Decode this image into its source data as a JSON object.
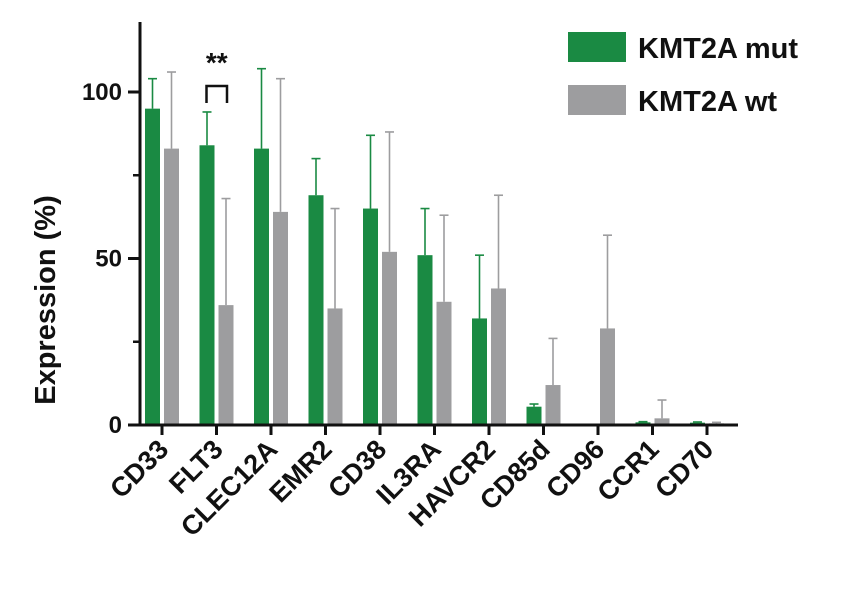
{
  "chart_data": {
    "type": "bar",
    "title": "",
    "xlabel": "",
    "ylabel": "Expression (%)",
    "ylim": [
      0,
      120
    ],
    "yticks": [
      0,
      50,
      100
    ],
    "grid": false,
    "legend_position": "top-right",
    "categories": [
      "CD33",
      "FLT3",
      "CLEC12A",
      "EMR2",
      "CD38",
      "IL3RA",
      "HAVCR2",
      "CD85d",
      "CD96",
      "CCR1",
      "CD70"
    ],
    "series": [
      {
        "name": "KMT2A mut",
        "color": "#1a8a43",
        "values": [
          95,
          84,
          83,
          69,
          65,
          51,
          32,
          5.5,
          0,
          0.8,
          0.7
        ],
        "error": [
          9,
          10,
          24,
          11,
          22,
          14,
          19,
          0.8,
          0,
          0.2,
          0.2
        ]
      },
      {
        "name": "KMT2A wt",
        "color": "#9d9d9f",
        "values": [
          83,
          36,
          64,
          35,
          52,
          37,
          41,
          12,
          29,
          2,
          0.5
        ],
        "error": [
          23,
          32,
          40,
          30,
          36,
          26,
          28,
          14,
          28,
          5.5,
          0.3
        ]
      }
    ],
    "annotations": [
      {
        "text": "**",
        "between_category": "FLT3"
      }
    ]
  }
}
